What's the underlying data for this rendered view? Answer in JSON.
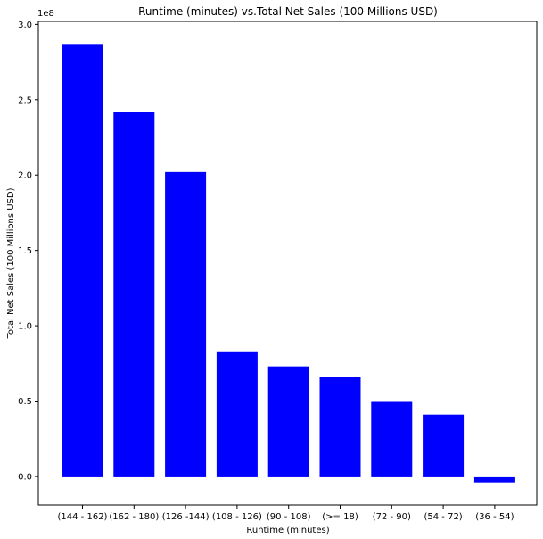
{
  "chart_data": {
    "type": "bar",
    "title": "Runtime (minutes) vs.Total Net Sales (100 Millions USD)",
    "xlabel": "Runtime (minutes)",
    "ylabel": "Total Net Sales (100 Millions USD)",
    "offset_label": "1e8",
    "categories": [
      "(144 - 162)",
      "(162 - 180)",
      "(126 -144)",
      "(108 - 126)",
      "(90 - 108)",
      "(>= 18)",
      "(72 - 90)",
      "(54 - 72)",
      "(36 - 54)"
    ],
    "values": [
      2.87,
      2.42,
      2.02,
      0.83,
      0.73,
      0.66,
      0.5,
      0.41,
      -0.04
    ],
    "value_scale": 100000000,
    "ylim": [
      -0.19,
      3.02
    ],
    "yticks": [
      0.0,
      0.5,
      1.0,
      1.5,
      2.0,
      2.5,
      3.0
    ],
    "ytick_labels": [
      "0.0",
      "0.5",
      "1.0",
      "1.5",
      "2.0",
      "2.5",
      "3.0"
    ],
    "bar_color": "#0000ff",
    "grid": false,
    "legend": "none"
  }
}
